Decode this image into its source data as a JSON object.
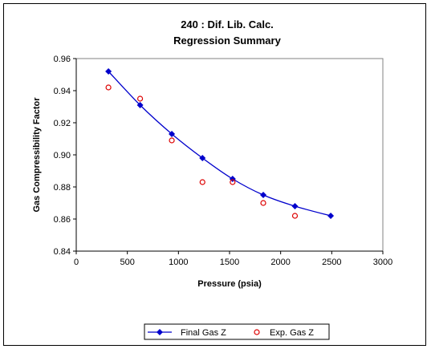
{
  "chart_data": {
    "type": "scatter",
    "title": "240 : Dif. Lib. Calc.",
    "subtitle": "Regression Summary",
    "xlabel": "Pressure (psia)",
    "ylabel": "Gas Compressibility Factor",
    "xlim": [
      0,
      3000
    ],
    "ylim": [
      0.84,
      0.96
    ],
    "xticks": [
      "0",
      "500",
      "1000",
      "1500",
      "2000",
      "2500",
      "3000"
    ],
    "yticks": [
      "0.84",
      "0.86",
      "0.88",
      "0.90",
      "0.92",
      "0.94",
      "0.96"
    ],
    "grid": false,
    "legend_position": "bottom",
    "series": [
      {
        "name": "Final Gas Z",
        "kind": "line-markers",
        "marker": "diamond",
        "color": "#0000cc",
        "x": [
          315,
          625,
          935,
          1235,
          1530,
          1830,
          2140,
          2490
        ],
        "y": [
          0.952,
          0.931,
          0.913,
          0.898,
          0.885,
          0.875,
          0.868,
          0.862
        ]
      },
      {
        "name": "Exp. Gas Z",
        "kind": "markers",
        "marker": "circle-open",
        "color": "#dd0000",
        "x": [
          315,
          625,
          935,
          1235,
          1530,
          1830,
          2140
        ],
        "y": [
          0.942,
          0.935,
          0.909,
          0.883,
          0.883,
          0.87,
          0.862
        ]
      }
    ]
  }
}
